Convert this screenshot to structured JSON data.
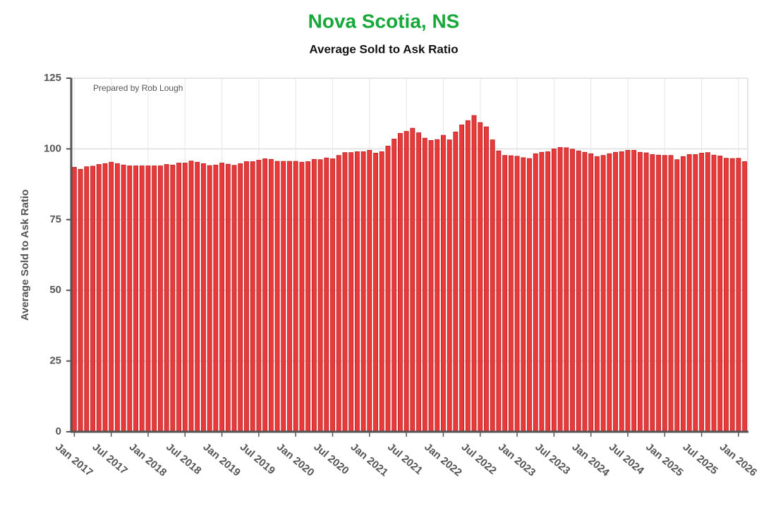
{
  "chart_data": {
    "type": "bar",
    "title": "Nova Scotia, NS",
    "subtitle": "Average Sold to Ask Ratio",
    "y_label": "Average Sold to Ask Ratio",
    "annotation": "Prepared by Rob Lough",
    "color": "#e83a3a",
    "grid": true,
    "ylim": [
      0,
      125
    ],
    "yticks": [
      0,
      25,
      50,
      75,
      100,
      125
    ],
    "categories": [
      "Jan 2017",
      null,
      null,
      null,
      null,
      null,
      "Jul 2017",
      null,
      null,
      null,
      null,
      null,
      "Jan 2018",
      null,
      null,
      null,
      null,
      null,
      "Jul 2018",
      null,
      null,
      null,
      null,
      null,
      "Jan 2019",
      null,
      null,
      null,
      null,
      null,
      "Jul 2019",
      null,
      null,
      null,
      null,
      null,
      "Jan 2020",
      null,
      null,
      null,
      null,
      null,
      "Jul 2020",
      null,
      null,
      null,
      null,
      null,
      "Jan 2021",
      null,
      null,
      null,
      null,
      null,
      "Jul 2021",
      null,
      null,
      null,
      null,
      null,
      "Jan 2022",
      null,
      null,
      null,
      null,
      null,
      "Jul 2022",
      null,
      null,
      null,
      null,
      null,
      "Jan 2023",
      null,
      null,
      null,
      null,
      null,
      "Jul 2023",
      null,
      null,
      null,
      null,
      null,
      "Jan 2024",
      null,
      null,
      null,
      null,
      null,
      "Jul 2024",
      null,
      null,
      null,
      null,
      null,
      "Jan 2025",
      null,
      null,
      null,
      null,
      null,
      "Jul 2025",
      null,
      null,
      null,
      null,
      null,
      "Jan 2026",
      null
    ],
    "values": [
      93.5,
      92.8,
      93.7,
      93.9,
      94.5,
      94.8,
      95.3,
      94.8,
      94.3,
      94.0,
      94.0,
      94.0,
      94.0,
      94.0,
      94.0,
      94.5,
      94.3,
      95.0,
      95.0,
      95.7,
      95.3,
      94.8,
      94.1,
      94.3,
      95.0,
      94.6,
      94.2,
      94.8,
      95.5,
      95.5,
      96.0,
      96.5,
      96.3,
      95.6,
      95.6,
      95.6,
      95.6,
      95.3,
      95.5,
      96.3,
      96.2,
      96.8,
      96.5,
      97.7,
      98.7,
      98.7,
      99.0,
      99.0,
      99.5,
      98.5,
      99.0,
      101.0,
      103.5,
      105.5,
      106.2,
      107.3,
      105.7,
      103.8,
      103.0,
      103.3,
      104.8,
      103.2,
      106.0,
      108.5,
      110.0,
      111.8,
      109.3,
      107.8,
      103.2,
      99.3,
      97.7,
      97.6,
      97.4,
      96.9,
      96.6,
      98.3,
      98.8,
      99.0,
      100.0,
      100.5,
      100.4,
      99.9,
      99.3,
      98.8,
      98.3,
      97.3,
      97.7,
      98.3,
      98.8,
      99.0,
      99.5,
      99.5,
      98.8,
      98.6,
      98.0,
      97.8,
      97.7,
      97.7,
      96.2,
      97.3,
      98.0,
      98.0,
      98.5,
      98.7,
      97.8,
      97.5,
      96.7,
      96.6,
      96.7,
      95.5
    ]
  }
}
